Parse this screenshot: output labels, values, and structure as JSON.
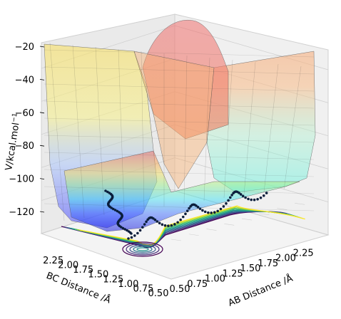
{
  "chart_data": {
    "type": "surface",
    "projection": "3d",
    "xlabel": "AB Distance /Å",
    "ylabel": "BC Distance /Å",
    "zlabel": "V/kcal.mol",
    "zlabel_superscript": "−1",
    "x_ticks": [
      "0.50",
      "0.75",
      "1.00",
      "1.25",
      "1.50",
      "1.75",
      "2.00",
      "2.25"
    ],
    "y_ticks": [
      "0.50",
      "0.75",
      "1.00",
      "1.25",
      "1.50",
      "1.75",
      "2.00",
      "2.25"
    ],
    "z_ticks": [
      "−120",
      "−100",
      "−80",
      "−60",
      "−40",
      "−20"
    ],
    "x_values": [
      0.5,
      0.75,
      1.0,
      1.25,
      1.5,
      1.75,
      2.0,
      2.25
    ],
    "y_values": [
      0.5,
      0.75,
      1.0,
      1.25,
      1.5,
      1.75,
      2.0,
      2.25
    ],
    "z_values": [
      -120,
      -100,
      -80,
      -60,
      -40,
      -20
    ],
    "xlim": [
      0.5,
      2.4
    ],
    "ylim": [
      0.5,
      2.4
    ],
    "zlim": [
      -135,
      -15
    ],
    "surface_colormap": "jet",
    "contour_colormap": "viridis",
    "trajectory_color": "#0b1e3c",
    "grid": true
  }
}
